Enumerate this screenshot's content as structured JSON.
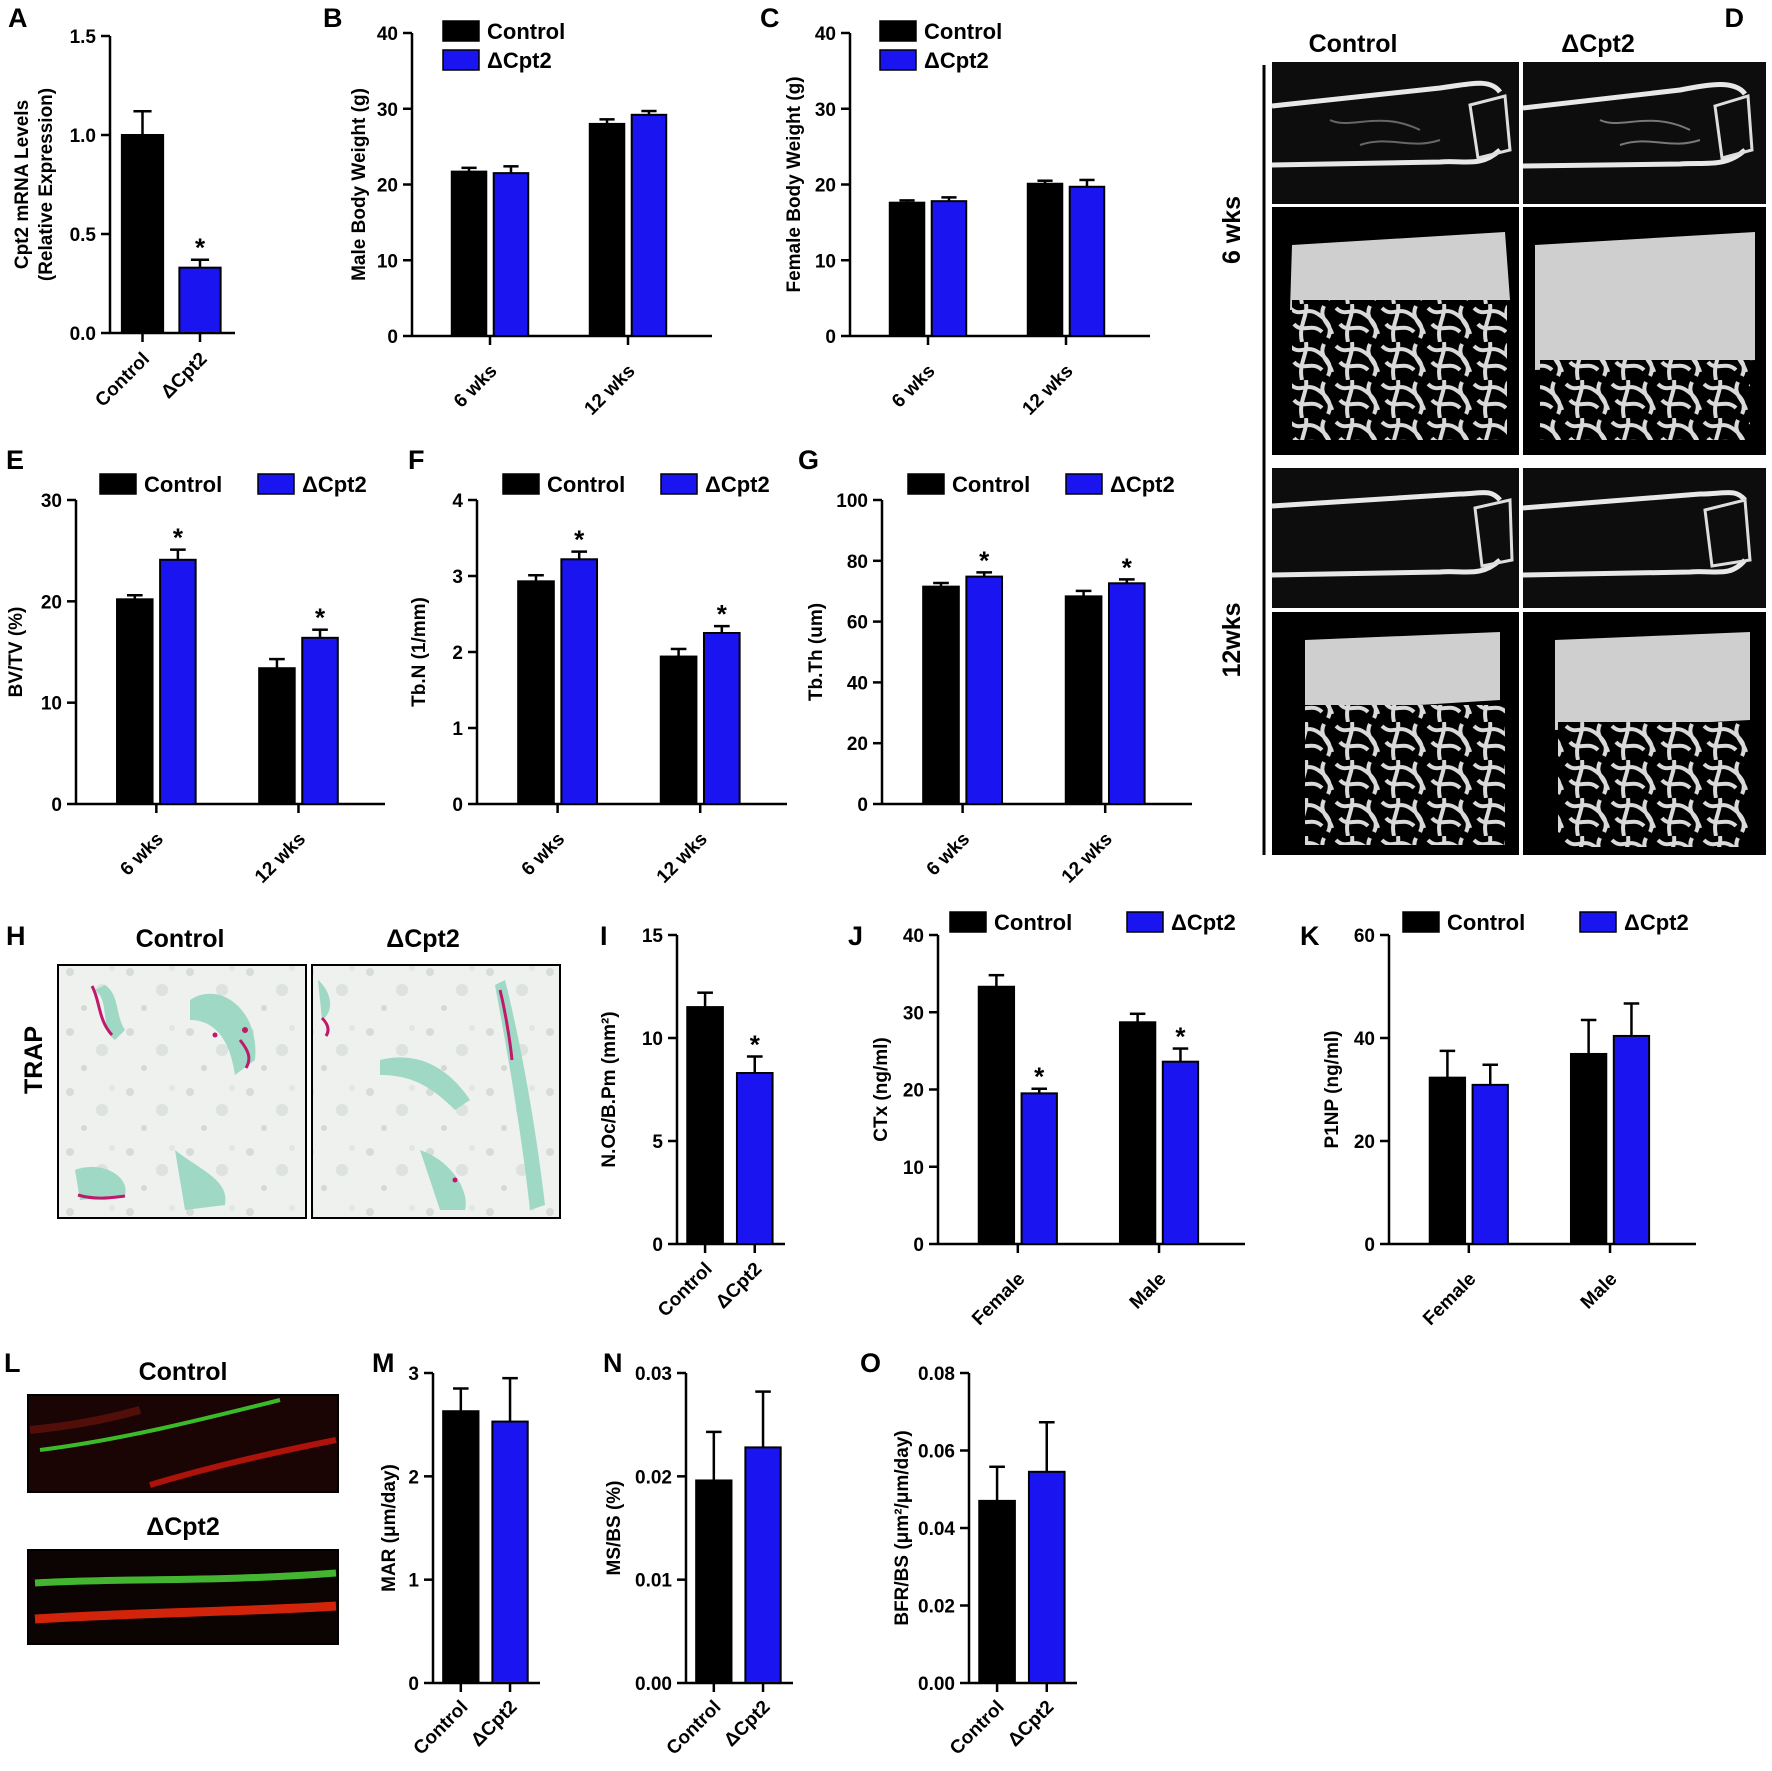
{
  "colors": {
    "control": "#000000",
    "mutant": "#1a14f0",
    "axis": "#000000"
  },
  "legend": {
    "control": "Control",
    "mutant": "ΔCpt2"
  },
  "panel_D": {
    "label": "D",
    "col_headers": [
      "Control",
      "ΔCpt2"
    ],
    "row_labels": [
      "6 wks",
      "12wks"
    ]
  },
  "panel_H": {
    "label": "H",
    "col_headers": [
      "Control",
      "ΔCpt2"
    ],
    "row_label": "TRAP"
  },
  "panel_L": {
    "label": "L",
    "row_headers": [
      "Control",
      "ΔCpt2"
    ]
  },
  "chart_data": [
    {
      "id": "A",
      "type": "bar",
      "label": "A",
      "ylabel": [
        "Cpt2 mRNA Levels",
        "(Relative Expression)"
      ],
      "categories": [
        "Control",
        "ΔCpt2"
      ],
      "values": [
        1.0,
        0.33
      ],
      "errors": [
        0.12,
        0.04
      ],
      "ylim": [
        0,
        1.5
      ],
      "yticks": [
        "0.0",
        "0.5",
        "1.0",
        "1.5"
      ],
      "stars": [
        false,
        true
      ],
      "legend": false
    },
    {
      "id": "B",
      "type": "bar",
      "label": "B",
      "ylabel": [
        "Male Body Weight (g)"
      ],
      "categories": [
        "6 wks",
        "12 wks"
      ],
      "series": [
        {
          "name": "Control",
          "values": [
            21.7,
            28.0
          ],
          "errors": [
            0.5,
            0.6
          ]
        },
        {
          "name": "ΔCpt2",
          "values": [
            21.5,
            29.2
          ],
          "errors": [
            0.9,
            0.5
          ]
        }
      ],
      "ylim": [
        0,
        40
      ],
      "yticks": [
        "0",
        "10",
        "20",
        "30",
        "40"
      ],
      "stars": [
        [
          false,
          false
        ],
        [
          false,
          false
        ]
      ],
      "legend": "top-left"
    },
    {
      "id": "C",
      "type": "bar",
      "label": "C",
      "ylabel": [
        "Female Body Weight (g)"
      ],
      "categories": [
        "6 wks",
        "12 wks"
      ],
      "series": [
        {
          "name": "Control",
          "values": [
            17.6,
            20.1
          ],
          "errors": [
            0.3,
            0.4
          ]
        },
        {
          "name": "ΔCpt2",
          "values": [
            17.8,
            19.7
          ],
          "errors": [
            0.5,
            0.9
          ]
        }
      ],
      "ylim": [
        0,
        40
      ],
      "yticks": [
        "0",
        "10",
        "20",
        "30",
        "40"
      ],
      "stars": [
        [
          false,
          false
        ],
        [
          false,
          false
        ]
      ],
      "legend": "top-left"
    },
    {
      "id": "E",
      "type": "bar",
      "label": "E",
      "ylabel": [
        "BV/TV (%)"
      ],
      "categories": [
        "6 wks",
        "12 wks"
      ],
      "series": [
        {
          "name": "Control",
          "values": [
            20.2,
            13.4
          ],
          "errors": [
            0.4,
            0.9
          ]
        },
        {
          "name": "ΔCpt2",
          "values": [
            24.1,
            16.4
          ],
          "errors": [
            1.0,
            0.8
          ]
        }
      ],
      "ylim": [
        0,
        30
      ],
      "yticks": [
        "0",
        "10",
        "20",
        "30"
      ],
      "stars": [
        [
          false,
          true
        ],
        [
          false,
          true
        ]
      ],
      "legend": "top"
    },
    {
      "id": "F",
      "type": "bar",
      "label": "F",
      "ylabel": [
        "Tb.N (1/mm)"
      ],
      "categories": [
        "6 wks",
        "12 wks"
      ],
      "series": [
        {
          "name": "Control",
          "values": [
            2.93,
            1.94
          ],
          "errors": [
            0.08,
            0.1
          ]
        },
        {
          "name": "ΔCpt2",
          "values": [
            3.22,
            2.25
          ],
          "errors": [
            0.1,
            0.09
          ]
        }
      ],
      "ylim": [
        0,
        4
      ],
      "yticks": [
        "0",
        "1",
        "2",
        "3",
        "4"
      ],
      "stars": [
        [
          false,
          true
        ],
        [
          false,
          true
        ]
      ],
      "legend": "top"
    },
    {
      "id": "G",
      "type": "bar",
      "label": "G",
      "ylabel": [
        "Tb.Th (um)"
      ],
      "categories": [
        "6 wks",
        "12 wks"
      ],
      "series": [
        {
          "name": "Control",
          "values": [
            71.5,
            68.3
          ],
          "errors": [
            1.2,
            1.8
          ]
        },
        {
          "name": "ΔCpt2",
          "values": [
            74.8,
            72.6
          ],
          "errors": [
            1.4,
            1.3
          ]
        }
      ],
      "ylim": [
        0,
        100
      ],
      "yticks": [
        "0",
        "20",
        "40",
        "60",
        "80",
        "100"
      ],
      "stars": [
        [
          false,
          true
        ],
        [
          false,
          true
        ]
      ],
      "legend": "top"
    },
    {
      "id": "I",
      "type": "bar",
      "label": "I",
      "ylabel": [
        "N.Oc/B.Pm (mm²)"
      ],
      "categories": [
        "Control",
        "ΔCpt2"
      ],
      "values": [
        11.5,
        8.3
      ],
      "errors": [
        0.7,
        0.8
      ],
      "ylim": [
        0,
        15
      ],
      "yticks": [
        "0",
        "5",
        "10",
        "15"
      ],
      "stars": [
        false,
        true
      ],
      "legend": false
    },
    {
      "id": "J",
      "type": "bar",
      "label": "J",
      "ylabel": [
        "CTx (ng/ml)"
      ],
      "categories": [
        "Female",
        "Male"
      ],
      "series": [
        {
          "name": "Control",
          "values": [
            33.3,
            28.7
          ],
          "errors": [
            1.5,
            1.1
          ]
        },
        {
          "name": "ΔCpt2",
          "values": [
            19.5,
            23.6
          ],
          "errors": [
            0.6,
            1.7
          ]
        }
      ],
      "ylim": [
        0,
        40
      ],
      "yticks": [
        "0",
        "10",
        "20",
        "30",
        "40"
      ],
      "stars": [
        [
          false,
          true
        ],
        [
          false,
          true
        ]
      ],
      "legend": "top"
    },
    {
      "id": "K",
      "type": "bar",
      "label": "K",
      "ylabel": [
        "P1NP (ng/ml)"
      ],
      "categories": [
        "Female",
        "Male"
      ],
      "series": [
        {
          "name": "Control",
          "values": [
            32.3,
            36.9
          ],
          "errors": [
            5.2,
            6.6
          ]
        },
        {
          "name": "ΔCpt2",
          "values": [
            30.9,
            40.4
          ],
          "errors": [
            3.9,
            6.3
          ]
        }
      ],
      "ylim": [
        0,
        60
      ],
      "yticks": [
        "0",
        "20",
        "40",
        "60"
      ],
      "stars": [
        [
          false,
          false
        ],
        [
          false,
          false
        ]
      ],
      "legend": "top"
    },
    {
      "id": "M",
      "type": "bar",
      "label": "M",
      "ylabel": [
        "MAR (μm/day)"
      ],
      "categories": [
        "Control",
        "ΔCpt2"
      ],
      "values": [
        2.63,
        2.53
      ],
      "errors": [
        0.22,
        0.42
      ],
      "ylim": [
        0,
        3
      ],
      "yticks": [
        "0",
        "1",
        "2",
        "3"
      ],
      "stars": [
        false,
        false
      ],
      "legend": false
    },
    {
      "id": "N",
      "type": "bar",
      "label": "N",
      "ylabel": [
        "MS/BS (%)"
      ],
      "categories": [
        "Control",
        "ΔCpt2"
      ],
      "values": [
        0.0196,
        0.0228
      ],
      "errors": [
        0.0047,
        0.0054
      ],
      "ylim": [
        0,
        0.03
      ],
      "yticks": [
        "0.00",
        "0.01",
        "0.02",
        "0.03"
      ],
      "stars": [
        false,
        false
      ],
      "legend": false
    },
    {
      "id": "O",
      "type": "bar",
      "label": "O",
      "ylabel": [
        "BFR/BS (μm²/μm/day)"
      ],
      "categories": [
        "Control",
        "ΔCpt2"
      ],
      "values": [
        0.047,
        0.0545
      ],
      "errors": [
        0.0088,
        0.0128
      ],
      "ylim": [
        0,
        0.08
      ],
      "yticks": [
        "0.00",
        "0.02",
        "0.04",
        "0.06",
        "0.08"
      ],
      "stars": [
        false,
        false
      ],
      "legend": false
    }
  ]
}
